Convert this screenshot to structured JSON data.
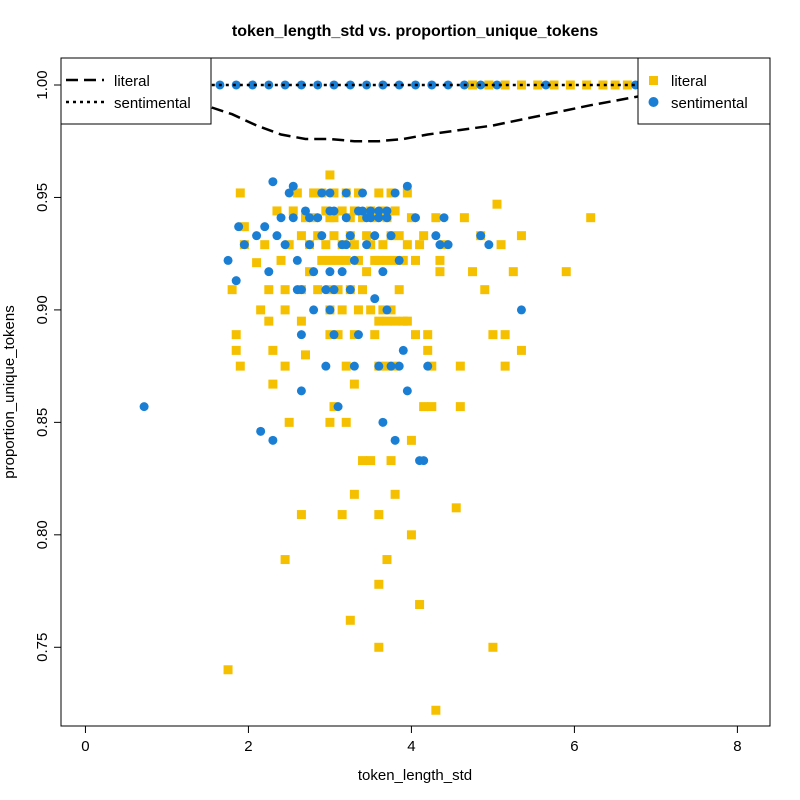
{
  "chart_data": {
    "type": "scatter",
    "title": "token_length_std vs. proportion_unique_tokens",
    "xlabel": "token_length_std",
    "ylabel": "proportion_unique_tokens",
    "xlim": [
      -0.3,
      8.4
    ],
    "ylim": [
      0.715,
      1.012
    ],
    "x_ticks": [
      0,
      2,
      4,
      6,
      8
    ],
    "y_ticks": [
      0.75,
      0.8,
      0.85,
      0.9,
      0.95,
      1.0
    ],
    "x_tick_labels": [
      "0",
      "2",
      "4",
      "6",
      "8"
    ],
    "y_tick_labels": [
      "0.75",
      "0.80",
      "0.85",
      "0.90",
      "0.95",
      "1.00"
    ],
    "grid": false,
    "colors": {
      "literal": "#F5C000",
      "sentimental": "#1A7FD4"
    },
    "series": [
      {
        "name": "literal",
        "marker": "square",
        "color": "#F5C000",
        "points": [
          [
            1.75,
            0.74
          ],
          [
            1.8,
            0.909
          ],
          [
            1.85,
            0.889
          ],
          [
            1.85,
            0.882
          ],
          [
            1.9,
            0.875
          ],
          [
            1.95,
            0.929
          ],
          [
            1.95,
            0.937
          ],
          [
            1.9,
            0.952
          ],
          [
            2.1,
            0.921
          ],
          [
            2.15,
            0.9
          ],
          [
            2.2,
            0.929
          ],
          [
            2.25,
            0.909
          ],
          [
            2.25,
            0.895
          ],
          [
            2.3,
            0.882
          ],
          [
            2.3,
            0.867
          ],
          [
            2.35,
            0.944
          ],
          [
            2.4,
            0.922
          ],
          [
            2.45,
            0.909
          ],
          [
            2.45,
            0.9
          ],
          [
            2.45,
            0.875
          ],
          [
            2.45,
            0.789
          ],
          [
            2.5,
            0.85
          ],
          [
            2.5,
            0.929
          ],
          [
            2.55,
            0.944
          ],
          [
            2.6,
            0.952
          ],
          [
            2.65,
            0.933
          ],
          [
            2.65,
            0.909
          ],
          [
            2.65,
            0.895
          ],
          [
            2.65,
            0.809
          ],
          [
            2.7,
            0.941
          ],
          [
            2.7,
            0.88
          ],
          [
            2.75,
            0.929
          ],
          [
            2.75,
            0.917
          ],
          [
            2.8,
            0.952
          ],
          [
            2.8,
            0.941
          ],
          [
            2.85,
            0.933
          ],
          [
            2.85,
            0.909
          ],
          [
            2.9,
            0.952
          ],
          [
            2.9,
            0.922
          ],
          [
            2.95,
            0.944
          ],
          [
            2.95,
            0.929
          ],
          [
            3.0,
            0.96
          ],
          [
            3.0,
            0.941
          ],
          [
            3.0,
            0.922
          ],
          [
            3.0,
            0.909
          ],
          [
            3.0,
            0.9
          ],
          [
            3.0,
            0.889
          ],
          [
            3.0,
            0.85
          ],
          [
            3.05,
            0.952
          ],
          [
            3.05,
            0.941
          ],
          [
            3.05,
            0.933
          ],
          [
            3.05,
            0.857
          ],
          [
            3.1,
            0.922
          ],
          [
            3.1,
            0.909
          ],
          [
            3.1,
            0.889
          ],
          [
            3.15,
            0.944
          ],
          [
            3.15,
            0.929
          ],
          [
            3.15,
            0.9
          ],
          [
            3.15,
            0.809
          ],
          [
            3.2,
            0.952
          ],
          [
            3.2,
            0.922
          ],
          [
            3.2,
            0.875
          ],
          [
            3.2,
            0.85
          ],
          [
            3.25,
            0.941
          ],
          [
            3.25,
            0.933
          ],
          [
            3.25,
            0.909
          ],
          [
            3.25,
            0.762
          ],
          [
            3.3,
            0.944
          ],
          [
            3.3,
            0.929
          ],
          [
            3.3,
            0.889
          ],
          [
            3.3,
            0.818
          ],
          [
            3.3,
            0.867
          ],
          [
            3.35,
            0.952
          ],
          [
            3.35,
            0.922
          ],
          [
            3.35,
            0.9
          ],
          [
            3.4,
            0.941
          ],
          [
            3.4,
            0.909
          ],
          [
            3.4,
            0.833
          ],
          [
            3.45,
            0.933
          ],
          [
            3.45,
            0.917
          ],
          [
            3.5,
            0.944
          ],
          [
            3.5,
            0.929
          ],
          [
            3.5,
            0.9
          ],
          [
            3.5,
            0.833
          ],
          [
            3.55,
            0.941
          ],
          [
            3.55,
            0.922
          ],
          [
            3.55,
            0.889
          ],
          [
            3.6,
            0.952
          ],
          [
            3.6,
            0.922
          ],
          [
            3.6,
            0.895
          ],
          [
            3.6,
            0.875
          ],
          [
            3.6,
            0.809
          ],
          [
            3.6,
            0.778
          ],
          [
            3.6,
            0.75
          ],
          [
            3.65,
            0.944
          ],
          [
            3.65,
            0.929
          ],
          [
            3.65,
            0.9
          ],
          [
            3.7,
            0.941
          ],
          [
            3.7,
            0.922
          ],
          [
            3.7,
            0.895
          ],
          [
            3.7,
            0.875
          ],
          [
            3.7,
            0.789
          ],
          [
            3.75,
            0.952
          ],
          [
            3.75,
            0.933
          ],
          [
            3.75,
            0.9
          ],
          [
            3.75,
            0.833
          ],
          [
            3.8,
            0.944
          ],
          [
            3.8,
            0.922
          ],
          [
            3.8,
            0.895
          ],
          [
            3.8,
            0.875
          ],
          [
            3.8,
            0.818
          ],
          [
            3.85,
            0.933
          ],
          [
            3.85,
            0.909
          ],
          [
            3.9,
            0.922
          ],
          [
            3.9,
            0.895
          ],
          [
            3.95,
            0.952
          ],
          [
            3.95,
            0.929
          ],
          [
            3.95,
            0.895
          ],
          [
            4.0,
            0.941
          ],
          [
            4.0,
            0.842
          ],
          [
            4.0,
            0.8
          ],
          [
            4.05,
            0.922
          ],
          [
            4.05,
            0.889
          ],
          [
            4.1,
            0.769
          ],
          [
            4.1,
            0.929
          ],
          [
            4.15,
            0.933
          ],
          [
            4.15,
            0.857
          ],
          [
            4.2,
            0.889
          ],
          [
            4.2,
            0.882
          ],
          [
            4.25,
            0.875
          ],
          [
            4.25,
            0.857
          ],
          [
            4.3,
            0.941
          ],
          [
            4.3,
            0.722
          ],
          [
            4.35,
            0.917
          ],
          [
            4.35,
            0.922
          ],
          [
            4.4,
            0.929
          ],
          [
            4.55,
            0.812
          ],
          [
            4.6,
            0.857
          ],
          [
            4.6,
            0.875
          ],
          [
            4.65,
            0.941
          ],
          [
            4.75,
            0.917
          ],
          [
            4.85,
            0.933
          ],
          [
            4.9,
            0.909
          ],
          [
            5.0,
            0.75
          ],
          [
            5.0,
            0.889
          ],
          [
            5.05,
            0.947
          ],
          [
            5.1,
            0.929
          ],
          [
            5.15,
            0.875
          ],
          [
            5.15,
            0.889
          ],
          [
            5.25,
            0.917
          ],
          [
            5.35,
            0.933
          ],
          [
            5.35,
            0.882
          ],
          [
            5.9,
            0.917
          ],
          [
            6.2,
            0.941
          ],
          [
            4.75,
            1.0
          ],
          [
            4.95,
            1.0
          ],
          [
            5.15,
            1.0
          ],
          [
            5.35,
            1.0
          ],
          [
            5.55,
            1.0
          ],
          [
            5.75,
            1.0
          ],
          [
            5.95,
            1.0
          ],
          [
            6.15,
            1.0
          ],
          [
            6.35,
            1.0
          ],
          [
            6.5,
            1.0
          ],
          [
            6.65,
            1.0
          ]
        ]
      },
      {
        "name": "sentimental",
        "marker": "circle",
        "color": "#1A7FD4",
        "points": [
          [
            0.72,
            0.857
          ],
          [
            1.75,
            0.922
          ],
          [
            1.85,
            0.913
          ],
          [
            1.88,
            0.937
          ],
          [
            1.95,
            0.929
          ],
          [
            2.1,
            0.933
          ],
          [
            2.15,
            0.846
          ],
          [
            2.2,
            0.937
          ],
          [
            2.25,
            0.917
          ],
          [
            2.3,
            0.957
          ],
          [
            2.3,
            0.842
          ],
          [
            2.35,
            0.933
          ],
          [
            2.4,
            0.941
          ],
          [
            2.45,
            0.929
          ],
          [
            2.5,
            0.952
          ],
          [
            2.55,
            0.955
          ],
          [
            2.55,
            0.941
          ],
          [
            2.6,
            0.922
          ],
          [
            2.6,
            0.909
          ],
          [
            2.65,
            0.909
          ],
          [
            2.65,
            0.889
          ],
          [
            2.65,
            0.864
          ],
          [
            2.7,
            0.944
          ],
          [
            2.75,
            0.941
          ],
          [
            2.75,
            0.929
          ],
          [
            2.8,
            0.917
          ],
          [
            2.8,
            0.9
          ],
          [
            2.85,
            0.941
          ],
          [
            2.9,
            0.952
          ],
          [
            2.9,
            0.933
          ],
          [
            2.95,
            0.909
          ],
          [
            2.95,
            0.875
          ],
          [
            3.0,
            0.952
          ],
          [
            3.0,
            0.944
          ],
          [
            3.0,
            0.917
          ],
          [
            3.0,
            0.9
          ],
          [
            3.05,
            0.944
          ],
          [
            3.05,
            0.909
          ],
          [
            3.05,
            0.889
          ],
          [
            3.1,
            0.857
          ],
          [
            3.15,
            0.929
          ],
          [
            3.15,
            0.917
          ],
          [
            3.2,
            0.952
          ],
          [
            3.2,
            0.941
          ],
          [
            3.2,
            0.929
          ],
          [
            3.25,
            0.933
          ],
          [
            3.25,
            0.909
          ],
          [
            3.3,
            0.922
          ],
          [
            3.3,
            0.875
          ],
          [
            3.35,
            0.944
          ],
          [
            3.35,
            0.889
          ],
          [
            3.4,
            0.952
          ],
          [
            3.4,
            0.944
          ],
          [
            3.45,
            0.929
          ],
          [
            3.45,
            0.941
          ],
          [
            3.5,
            0.941
          ],
          [
            3.5,
            0.944
          ],
          [
            3.55,
            0.933
          ],
          [
            3.55,
            0.905
          ],
          [
            3.6,
            0.944
          ],
          [
            3.6,
            0.941
          ],
          [
            3.6,
            0.875
          ],
          [
            3.65,
            0.917
          ],
          [
            3.65,
            0.85
          ],
          [
            3.7,
            0.941
          ],
          [
            3.7,
            0.944
          ],
          [
            3.7,
            0.9
          ],
          [
            3.75,
            0.875
          ],
          [
            3.75,
            0.933
          ],
          [
            3.8,
            0.952
          ],
          [
            3.8,
            0.842
          ],
          [
            3.85,
            0.922
          ],
          [
            3.85,
            0.875
          ],
          [
            3.9,
            0.882
          ],
          [
            3.95,
            0.864
          ],
          [
            3.95,
            0.955
          ],
          [
            4.05,
            0.941
          ],
          [
            4.1,
            0.833
          ],
          [
            4.15,
            0.833
          ],
          [
            4.2,
            0.875
          ],
          [
            4.3,
            0.933
          ],
          [
            4.35,
            0.929
          ],
          [
            4.4,
            0.941
          ],
          [
            4.45,
            0.929
          ],
          [
            4.85,
            0.933
          ],
          [
            4.95,
            0.929
          ],
          [
            5.35,
            0.9
          ],
          [
            1.65,
            1.0
          ],
          [
            1.85,
            1.0
          ],
          [
            2.05,
            1.0
          ],
          [
            2.25,
            1.0
          ],
          [
            2.45,
            1.0
          ],
          [
            2.65,
            1.0
          ],
          [
            2.85,
            1.0
          ],
          [
            3.05,
            1.0
          ],
          [
            3.25,
            1.0
          ],
          [
            3.45,
            1.0
          ],
          [
            3.65,
            1.0
          ],
          [
            3.85,
            1.0
          ],
          [
            4.05,
            1.0
          ],
          [
            4.25,
            1.0
          ],
          [
            4.45,
            1.0
          ],
          [
            4.65,
            1.0
          ],
          [
            4.85,
            1.0
          ],
          [
            5.05,
            1.0
          ],
          [
            5.65,
            1.0
          ],
          [
            6.75,
            1.0
          ]
        ]
      }
    ],
    "lines": [
      {
        "name": "literal",
        "style": "dashed",
        "points": [
          [
            1.55,
            0.99
          ],
          [
            1.8,
            0.987
          ],
          [
            2.1,
            0.982
          ],
          [
            2.4,
            0.978
          ],
          [
            2.7,
            0.976
          ],
          [
            3.0,
            0.976
          ],
          [
            3.3,
            0.975
          ],
          [
            3.6,
            0.975
          ],
          [
            3.9,
            0.976
          ],
          [
            4.2,
            0.978
          ],
          [
            4.6,
            0.98
          ],
          [
            5.0,
            0.982
          ],
          [
            5.4,
            0.985
          ],
          [
            5.8,
            0.988
          ],
          [
            6.2,
            0.991
          ],
          [
            6.5,
            0.993
          ],
          [
            6.8,
            0.995
          ]
        ]
      },
      {
        "name": "sentimental",
        "style": "dotted",
        "points": [
          [
            1.55,
            1.0
          ],
          [
            3.0,
            1.0
          ],
          [
            4.5,
            1.0
          ],
          [
            6.0,
            1.0
          ],
          [
            6.8,
            1.0
          ]
        ]
      }
    ],
    "legends": [
      {
        "placement": "top-left",
        "entries": [
          {
            "label": "literal",
            "style": "dashed"
          },
          {
            "label": "sentimental",
            "style": "dotted"
          }
        ]
      },
      {
        "placement": "top-right",
        "entries": [
          {
            "label": "literal",
            "marker": "square"
          },
          {
            "label": "sentimental",
            "marker": "circle"
          }
        ]
      }
    ]
  }
}
